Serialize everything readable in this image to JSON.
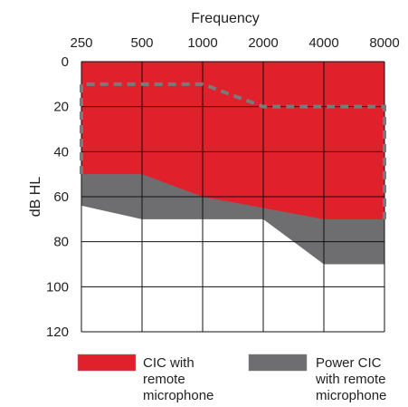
{
  "chart_data": {
    "type": "area",
    "title": "",
    "xlabel": "Frequency",
    "ylabel": "dB HL",
    "x_ticks": [
      "250",
      "500",
      "1000",
      "2000",
      "4000",
      "8000"
    ],
    "x_scale": "log2",
    "y_ticks": [
      "0",
      "20",
      "40",
      "60",
      "80",
      "100",
      "120"
    ],
    "ylim": [
      0,
      120
    ],
    "y_inverted": true,
    "grid": true,
    "legend_position": "bottom",
    "series": [
      {
        "name": "CIC with remote microphone",
        "color": "#e0202a",
        "boundary_lower_db": [
          {
            "x": 250,
            "y": 50
          },
          {
            "x": 500,
            "y": 50
          },
          {
            "x": 1000,
            "y": 60
          },
          {
            "x": 2000,
            "y": 65
          },
          {
            "x": 4000,
            "y": 70
          },
          {
            "x": 8000,
            "y": 70
          }
        ]
      },
      {
        "name": "Power CIC with remote microphone",
        "color": "#6e6e70",
        "boundary_lower_db": [
          {
            "x": 250,
            "y": 64
          },
          {
            "x": 500,
            "y": 70
          },
          {
            "x": 1000,
            "y": 70
          },
          {
            "x": 2000,
            "y": 70
          },
          {
            "x": 4000,
            "y": 90
          },
          {
            "x": 8000,
            "y": 90
          }
        ]
      }
    ],
    "dashed_line": {
      "color": "#7a7a7a",
      "points": [
        {
          "x": 250,
          "y": 50
        },
        {
          "x": 250,
          "y": 10
        },
        {
          "x": 500,
          "y": 10
        },
        {
          "x": 1000,
          "y": 10
        },
        {
          "x": 2000,
          "y": 20
        },
        {
          "x": 4000,
          "y": 20
        },
        {
          "x": 8000,
          "y": 20
        },
        {
          "x": 8000,
          "y": 70
        }
      ]
    },
    "legend": [
      {
        "lines": [
          "CIC with",
          "remote",
          "microphone"
        ],
        "color": "#e0202a"
      },
      {
        "lines": [
          "Power CIC",
          "with remote",
          "microphone"
        ],
        "color": "#6e6e70"
      }
    ]
  }
}
